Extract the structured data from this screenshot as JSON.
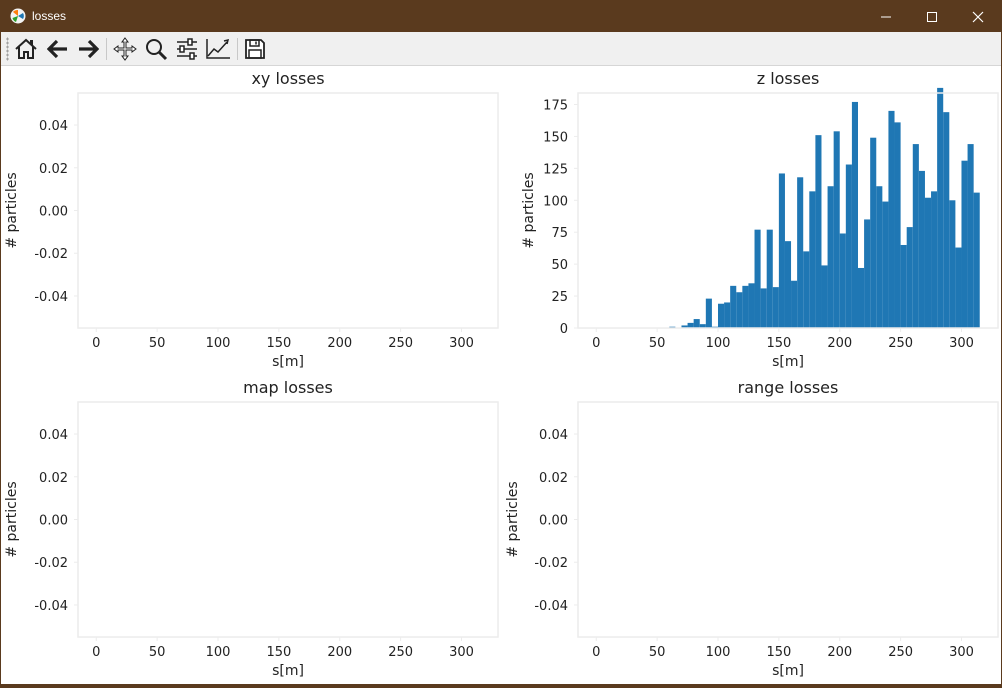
{
  "window": {
    "title": "losses",
    "icons": {
      "app": "matplotlib-icon",
      "minimize": "minimize-icon",
      "maximize": "maximize-icon",
      "close": "close-icon"
    }
  },
  "toolbar": {
    "buttons": [
      {
        "name": "home-button",
        "icon": "home-icon"
      },
      {
        "name": "back-button",
        "icon": "arrow-left-icon"
      },
      {
        "name": "forward-button",
        "icon": "arrow-right-icon"
      },
      {
        "name": "pan-button",
        "icon": "move-icon"
      },
      {
        "name": "zoom-button",
        "icon": "zoom-icon"
      },
      {
        "name": "subplots-button",
        "icon": "sliders-icon"
      },
      {
        "name": "customize-button",
        "icon": "chart-edit-icon"
      },
      {
        "name": "save-button",
        "icon": "save-icon"
      }
    ]
  },
  "chart_data": [
    {
      "type": "bar",
      "title": "xy losses",
      "xlabel": "s[m]",
      "ylabel": "# particles",
      "xlim": [
        -15,
        330
      ],
      "ylim": [
        -0.055,
        0.055
      ],
      "xticks": [
        "0",
        "50",
        "100",
        "150",
        "200",
        "250",
        "300"
      ],
      "yticks": [
        "0.04",
        "0.02",
        "0.00",
        "-0.02",
        "-0.04"
      ],
      "bars": []
    },
    {
      "type": "bar",
      "title": "z losses",
      "xlabel": "s[m]",
      "ylabel": "# particles",
      "xlim": [
        -15,
        330
      ],
      "ylim": [
        0,
        184
      ],
      "xticks": [
        "0",
        "50",
        "100",
        "150",
        "200",
        "250",
        "300"
      ],
      "yticks": [
        "0",
        "25",
        "50",
        "75",
        "100",
        "125",
        "150",
        "175"
      ],
      "bin_width": 5,
      "bars": [
        {
          "x": 60,
          "y": 1
        },
        {
          "x": 70,
          "y": 2
        },
        {
          "x": 75,
          "y": 4
        },
        {
          "x": 80,
          "y": 7
        },
        {
          "x": 85,
          "y": 3
        },
        {
          "x": 90,
          "y": 23
        },
        {
          "x": 95,
          "y": 1
        },
        {
          "x": 100,
          "y": 19
        },
        {
          "x": 105,
          "y": 20
        },
        {
          "x": 110,
          "y": 33
        },
        {
          "x": 115,
          "y": 28
        },
        {
          "x": 120,
          "y": 33
        },
        {
          "x": 125,
          "y": 35
        },
        {
          "x": 130,
          "y": 77
        },
        {
          "x": 135,
          "y": 31
        },
        {
          "x": 140,
          "y": 77
        },
        {
          "x": 145,
          "y": 32
        },
        {
          "x": 150,
          "y": 121
        },
        {
          "x": 155,
          "y": 68
        },
        {
          "x": 160,
          "y": 37
        },
        {
          "x": 165,
          "y": 118
        },
        {
          "x": 170,
          "y": 60
        },
        {
          "x": 175,
          "y": 107
        },
        {
          "x": 180,
          "y": 151
        },
        {
          "x": 185,
          "y": 49
        },
        {
          "x": 190,
          "y": 111
        },
        {
          "x": 195,
          "y": 154
        },
        {
          "x": 200,
          "y": 74
        },
        {
          "x": 205,
          "y": 128
        },
        {
          "x": 210,
          "y": 177
        },
        {
          "x": 215,
          "y": 47
        },
        {
          "x": 220,
          "y": 85
        },
        {
          "x": 225,
          "y": 149
        },
        {
          "x": 230,
          "y": 111
        },
        {
          "x": 235,
          "y": 99
        },
        {
          "x": 240,
          "y": 170
        },
        {
          "x": 245,
          "y": 161
        },
        {
          "x": 250,
          "y": 65
        },
        {
          "x": 255,
          "y": 79
        },
        {
          "x": 260,
          "y": 144
        },
        {
          "x": 265,
          "y": 123
        },
        {
          "x": 270,
          "y": 102
        },
        {
          "x": 275,
          "y": 107
        },
        {
          "x": 280,
          "y": 188
        },
        {
          "x": 285,
          "y": 169
        },
        {
          "x": 290,
          "y": 100
        },
        {
          "x": 295,
          "y": 63
        },
        {
          "x": 300,
          "y": 131
        },
        {
          "x": 305,
          "y": 144
        },
        {
          "x": 310,
          "y": 106
        }
      ],
      "bar_color": "#1f77b4"
    },
    {
      "type": "bar",
      "title": "map losses",
      "xlabel": "s[m]",
      "ylabel": "# particles",
      "xlim": [
        -15,
        330
      ],
      "ylim": [
        -0.055,
        0.055
      ],
      "xticks": [
        "0",
        "50",
        "100",
        "150",
        "200",
        "250",
        "300"
      ],
      "yticks": [
        "0.04",
        "0.02",
        "0.00",
        "-0.02",
        "-0.04"
      ],
      "bars": []
    },
    {
      "type": "bar",
      "title": "range losses",
      "xlabel": "s[m]",
      "ylabel": "# particles",
      "xlim": [
        -15,
        330
      ],
      "ylim": [
        -0.055,
        0.055
      ],
      "xticks": [
        "0",
        "50",
        "100",
        "150",
        "200",
        "250",
        "300"
      ],
      "yticks": [
        "0.04",
        "0.02",
        "0.00",
        "-0.02",
        "-0.04"
      ],
      "bars": []
    }
  ]
}
